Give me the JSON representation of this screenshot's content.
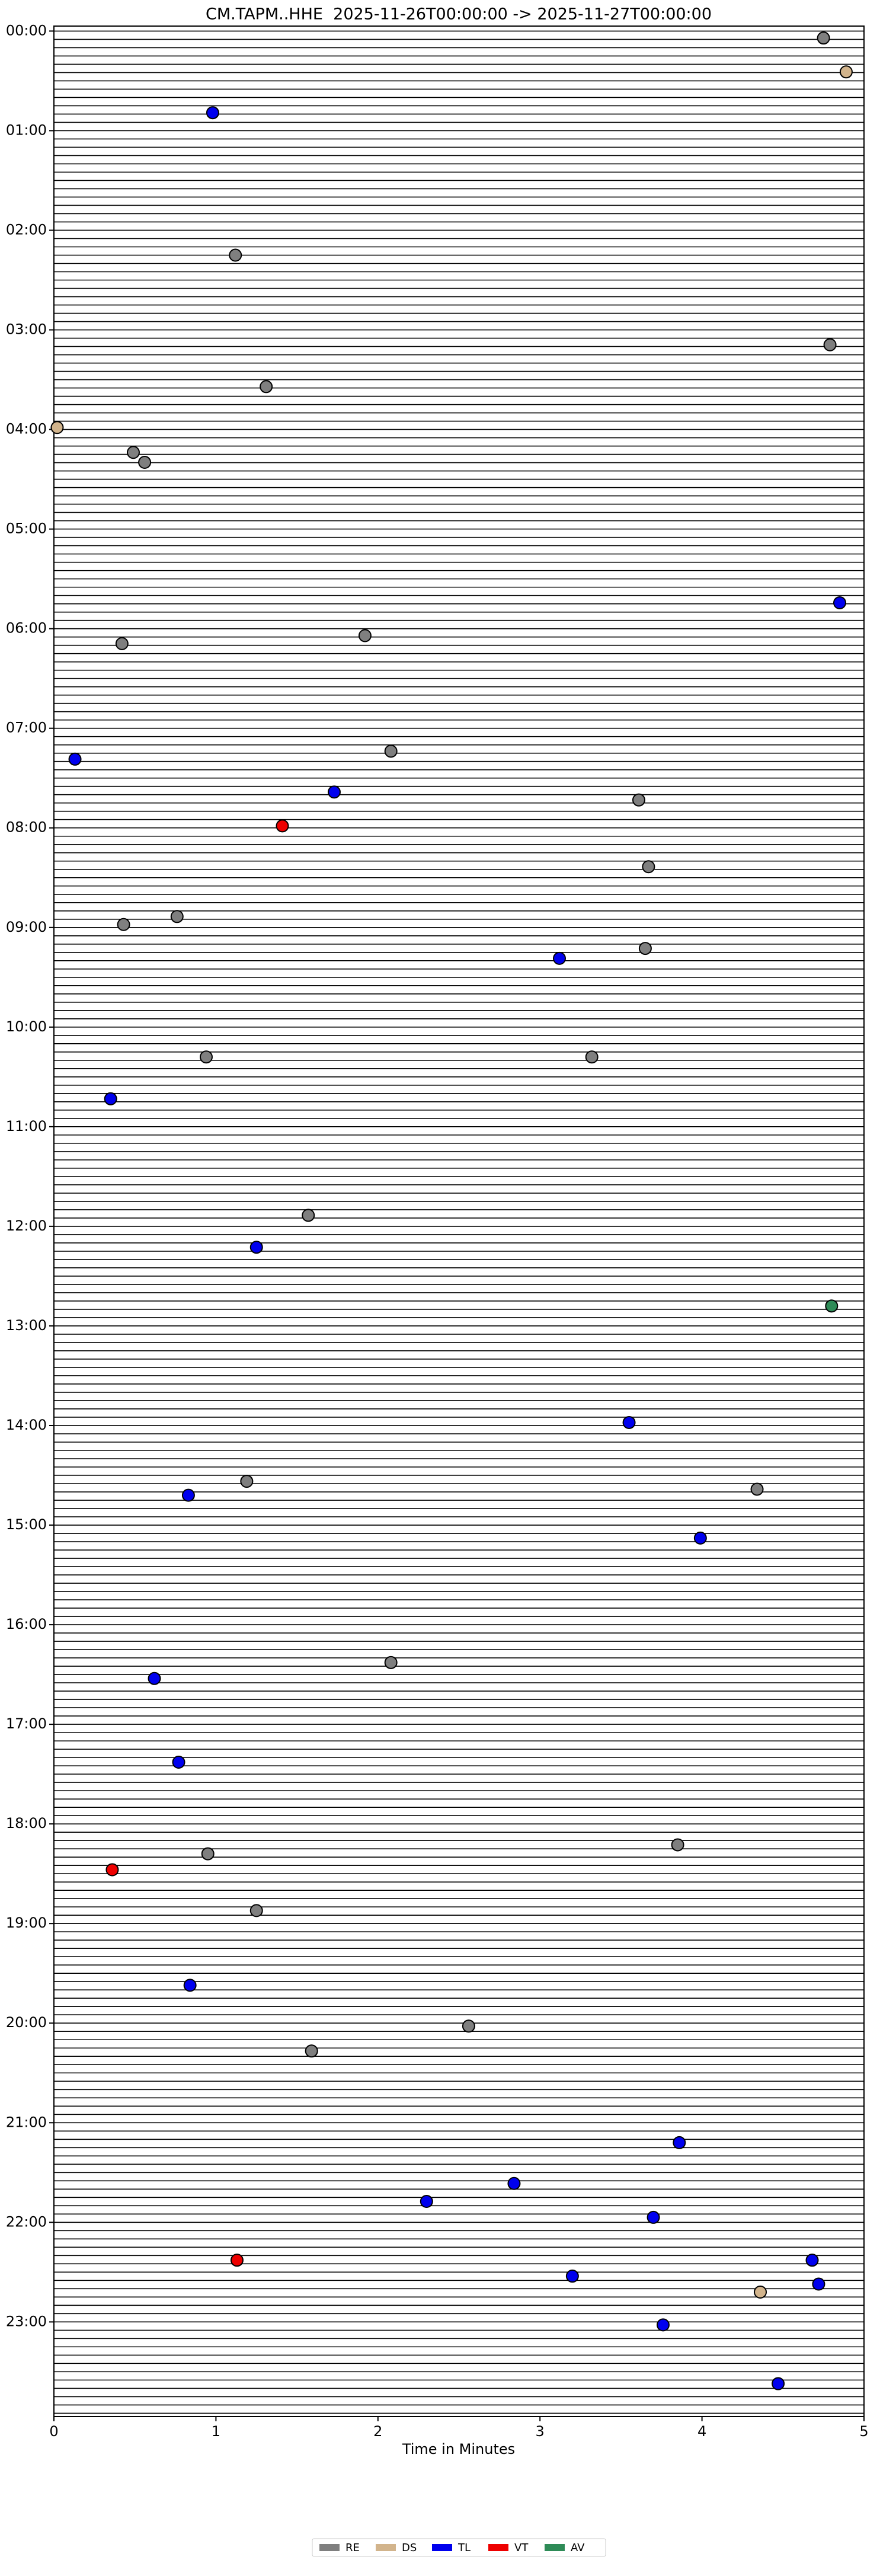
{
  "chart_data": {
    "type": "scatter",
    "title": "CM.TAPM..HHE  2025-11-26T00:00:00 -> 2025-11-27T00:00:00",
    "xlabel": "Time in Minutes",
    "xlim": [
      0,
      5
    ],
    "xticks": [
      0,
      1,
      2,
      3,
      4,
      5
    ],
    "ylim": [
      -0.05,
      23.95
    ],
    "y_inverted": true,
    "yticks": [
      {
        "value": 0,
        "label": "00:00"
      },
      {
        "value": 1,
        "label": "01:00"
      },
      {
        "value": 2,
        "label": "02:00"
      },
      {
        "value": 3,
        "label": "03:00"
      },
      {
        "value": 4,
        "label": "04:00"
      },
      {
        "value": 5,
        "label": "05:00"
      },
      {
        "value": 6,
        "label": "06:00"
      },
      {
        "value": 7,
        "label": "07:00"
      },
      {
        "value": 8,
        "label": "08:00"
      },
      {
        "value": 9,
        "label": "09:00"
      },
      {
        "value": 10,
        "label": "10:00"
      },
      {
        "value": 11,
        "label": "11:00"
      },
      {
        "value": 12,
        "label": "12:00"
      },
      {
        "value": 13,
        "label": "13:00"
      },
      {
        "value": 14,
        "label": "14:00"
      },
      {
        "value": 15,
        "label": "15:00"
      },
      {
        "value": 16,
        "label": "16:00"
      },
      {
        "value": 17,
        "label": "17:00"
      },
      {
        "value": 18,
        "label": "18:00"
      },
      {
        "value": 19,
        "label": "19:00"
      },
      {
        "value": 20,
        "label": "20:00"
      },
      {
        "value": 21,
        "label": "21:00"
      },
      {
        "value": 22,
        "label": "22:00"
      },
      {
        "value": 23,
        "label": "23:00"
      }
    ],
    "legend": "below",
    "series": [
      {
        "name": "RE",
        "color": "#7f7f7f",
        "x": [
          4.75,
          1.12,
          4.79,
          1.31,
          0.49,
          0.56,
          1.92,
          0.42,
          2.08,
          3.61,
          3.67,
          0.76,
          0.43,
          3.65,
          0.94,
          3.32,
          1.57,
          1.19,
          4.34,
          2.08,
          3.85,
          0.95,
          1.25,
          2.56,
          1.59
        ],
        "values": [
          0.07,
          2.25,
          3.15,
          3.57,
          4.23,
          4.33,
          6.07,
          6.15,
          7.23,
          7.72,
          8.39,
          8.89,
          8.97,
          9.21,
          10.3,
          10.3,
          11.89,
          14.56,
          14.64,
          16.38,
          18.21,
          18.3,
          18.87,
          20.03,
          20.28
        ]
      },
      {
        "name": "DS",
        "color": "#d2b48c",
        "x": [
          4.89,
          0.02,
          4.36
        ],
        "values": [
          0.41,
          3.98,
          22.7
        ]
      },
      {
        "name": "TL",
        "color": "#0000ee",
        "x": [
          0.98,
          4.85,
          0.13,
          1.73,
          3.12,
          0.35,
          1.25,
          3.55,
          0.83,
          3.99,
          0.62,
          0.77,
          0.84,
          3.86,
          2.84,
          2.3,
          3.7,
          4.68,
          3.2,
          4.72,
          3.76,
          4.47
        ],
        "values": [
          0.82,
          5.74,
          7.31,
          7.64,
          9.31,
          10.72,
          12.21,
          13.97,
          14.7,
          15.13,
          16.54,
          17.38,
          19.62,
          21.2,
          21.61,
          21.79,
          21.95,
          22.38,
          22.54,
          22.62,
          23.03,
          23.62
        ]
      },
      {
        "name": "VT",
        "color": "#ee0000",
        "x": [
          1.41,
          0.36,
          1.13
        ],
        "values": [
          7.98,
          18.46,
          22.38
        ]
      },
      {
        "name": "AV",
        "color": "#2e8b57",
        "x": [
          4.8
        ],
        "values": [
          12.8
        ]
      }
    ]
  }
}
